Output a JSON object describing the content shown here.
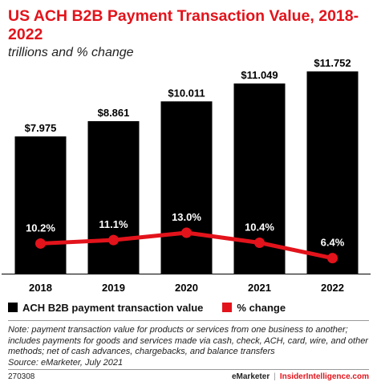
{
  "header": {
    "title": "US ACH B2B Payment Transaction Value, 2018-2022",
    "subtitle": "trillions and % change"
  },
  "legend": {
    "bar_label": "ACH B2B payment transaction value",
    "line_label": "% change"
  },
  "note": {
    "line1": "Note: payment transaction value for products or services from one business to another;",
    "line2": "includes payments for goods and services made via cash, check, ACH, card, wire, and other",
    "line3": "methods; net of cash advances, chargebacks, and balance transfers",
    "source": "Source: eMarketer, July 2021"
  },
  "footer": {
    "id": "270308",
    "brand": "eMarketer",
    "separator": "|",
    "site": "InsiderIntelligence.com"
  },
  "colors": {
    "bar": "#000000",
    "line": "#e3131b",
    "title": "#e3131b"
  },
  "chart_data": {
    "type": "bar",
    "categories": [
      "2018",
      "2019",
      "2020",
      "2021",
      "2022"
    ],
    "series": [
      {
        "name": "ACH B2B payment transaction value",
        "type": "bar",
        "values": [
          7.975,
          8.861,
          10.011,
          11.049,
          11.752
        ],
        "labels": [
          "$7.975",
          "$8.861",
          "$10.011",
          "$11.049",
          "$11.752"
        ]
      },
      {
        "name": "% change",
        "type": "line",
        "values": [
          10.2,
          11.1,
          13.0,
          10.4,
          6.4
        ],
        "labels": [
          "10.2%",
          "11.1%",
          "13.0%",
          "10.4%",
          "6.4%"
        ]
      }
    ],
    "ylim": [
      0,
      11.752
    ],
    "grid": false,
    "legend": "bottom-left"
  }
}
